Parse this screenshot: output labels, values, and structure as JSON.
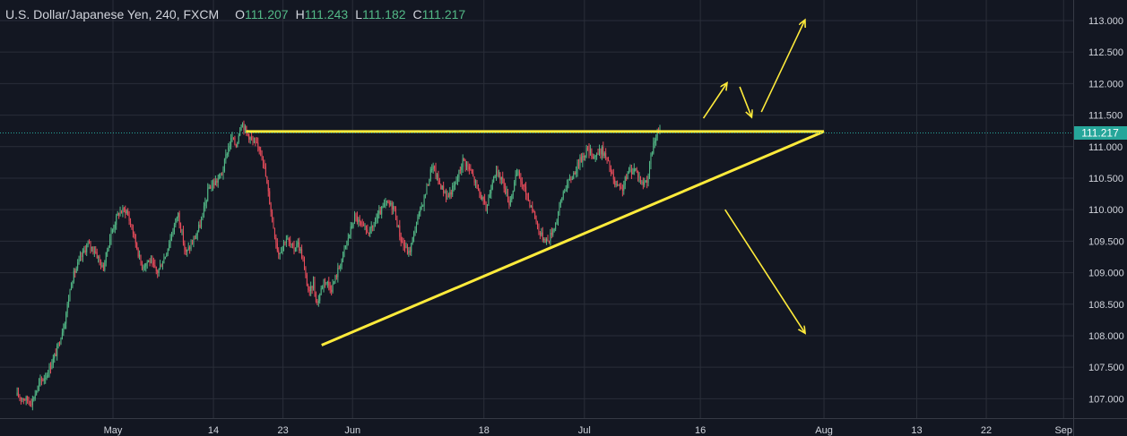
{
  "header": {
    "symbol": "U.S. Dollar/Japanese Yen, 240, FXCM",
    "open_label": "O",
    "open_value": "111.207",
    "high_label": "H",
    "high_value": "111.243",
    "low_label": "L",
    "low_value": "111.182",
    "close_label": "C",
    "close_value": "111.217"
  },
  "colors": {
    "background": "#131722",
    "grid": "#2a2e39",
    "axis_text": "#d1d4dc",
    "up": "#53b987",
    "down": "#eb4d5c",
    "drawing": "#ffeb3b",
    "price_tag": "#26a69a"
  },
  "chart_data": {
    "type": "candlestick",
    "interval": "240",
    "source": "FXCM",
    "y_ticks": [
      "107.000",
      "107.500",
      "108.000",
      "108.500",
      "109.000",
      "109.500",
      "110.000",
      "110.500",
      "111.000",
      "111.500",
      "112.000",
      "112.500",
      "113.000"
    ],
    "ylim": [
      106.85,
      113.2
    ],
    "x_ticks": [
      {
        "label": "May",
        "day": 0
      },
      {
        "label": "14",
        "day": 13
      },
      {
        "label": "23",
        "day": 22
      },
      {
        "label": "Jun",
        "day": 31
      },
      {
        "label": "18",
        "day": 48
      },
      {
        "label": "Jul",
        "day": 61
      },
      {
        "label": "16",
        "day": 76
      },
      {
        "label": "Aug",
        "day": 92
      },
      {
        "label": "13",
        "day": 104
      },
      {
        "label": "22",
        "day": 113
      },
      {
        "label": "Sep",
        "day": 123
      }
    ],
    "last_price": "111.217",
    "price_path": [
      [
        -12.4,
        107.05
      ],
      [
        -10.5,
        106.95
      ],
      [
        -9.5,
        107.25
      ],
      [
        -8.5,
        107.4
      ],
      [
        -7.3,
        107.75
      ],
      [
        -6.3,
        108.2
      ],
      [
        -5.3,
        108.9
      ],
      [
        -4.3,
        109.2
      ],
      [
        -3.3,
        109.45
      ],
      [
        -2.3,
        109.35
      ],
      [
        -1.3,
        109.05
      ],
      [
        -0.3,
        109.6
      ],
      [
        0.7,
        109.95
      ],
      [
        1.7,
        110.0
      ],
      [
        2.7,
        109.6
      ],
      [
        3.7,
        109.1
      ],
      [
        4.7,
        109.2
      ],
      [
        5.7,
        109.0
      ],
      [
        6.7,
        109.25
      ],
      [
        7.7,
        109.65
      ],
      [
        8.4,
        109.95
      ],
      [
        9.4,
        109.3
      ],
      [
        10.4,
        109.5
      ],
      [
        11.4,
        109.8
      ],
      [
        12.4,
        110.35
      ],
      [
        13.4,
        110.45
      ],
      [
        14.2,
        110.6
      ],
      [
        14.7,
        110.9
      ],
      [
        15.4,
        111.15
      ],
      [
        15.9,
        111.0
      ],
      [
        16.6,
        111.4
      ],
      [
        17.2,
        111.25
      ],
      [
        18.2,
        111.05
      ],
      [
        19.2,
        110.95
      ],
      [
        19.8,
        110.5
      ],
      [
        20.8,
        109.7
      ],
      [
        21.4,
        109.3
      ],
      [
        22.4,
        109.55
      ],
      [
        23.4,
        109.35
      ],
      [
        23.8,
        109.5
      ],
      [
        24.4,
        109.3
      ],
      [
        24.9,
        108.95
      ],
      [
        25.4,
        108.65
      ],
      [
        25.9,
        108.85
      ],
      [
        26.4,
        108.5
      ],
      [
        27.3,
        108.9
      ],
      [
        28.3,
        108.75
      ],
      [
        29.3,
        109.1
      ],
      [
        30.3,
        109.5
      ],
      [
        31.3,
        109.9
      ],
      [
        32.3,
        109.7
      ],
      [
        33.3,
        109.65
      ],
      [
        34.3,
        109.9
      ],
      [
        35.3,
        110.1
      ],
      [
        36.3,
        110.05
      ],
      [
        37.3,
        109.5
      ],
      [
        38.3,
        109.3
      ],
      [
        39.3,
        109.8
      ],
      [
        40.3,
        110.2
      ],
      [
        41.3,
        110.7
      ],
      [
        42.3,
        110.4
      ],
      [
        43.3,
        110.2
      ],
      [
        44.3,
        110.4
      ],
      [
        45.3,
        110.8
      ],
      [
        46.3,
        110.6
      ],
      [
        47.3,
        110.3
      ],
      [
        48.3,
        110.0
      ],
      [
        49.3,
        110.6
      ],
      [
        50.3,
        110.5
      ],
      [
        51.3,
        110.1
      ],
      [
        52.3,
        110.6
      ],
      [
        53.3,
        110.3
      ],
      [
        54.3,
        110.0
      ],
      [
        55.3,
        109.6
      ],
      [
        56.3,
        109.5
      ],
      [
        57.3,
        109.8
      ],
      [
        58.3,
        110.3
      ],
      [
        59.3,
        110.5
      ],
      [
        60.3,
        110.75
      ],
      [
        61.3,
        110.95
      ],
      [
        62.3,
        110.85
      ],
      [
        63.3,
        110.95
      ],
      [
        64.2,
        110.7
      ],
      [
        64.9,
        110.4
      ],
      [
        65.8,
        110.3
      ],
      [
        66.7,
        110.6
      ],
      [
        67.6,
        110.65
      ],
      [
        68.5,
        110.4
      ],
      [
        69.2,
        110.5
      ],
      [
        69.7,
        110.9
      ],
      [
        70.2,
        111.15
      ],
      [
        70.8,
        111.24
      ]
    ]
  },
  "drawings": {
    "resistance_line": {
      "from": [
        17.2,
        111.24
      ],
      "to": [
        92.0,
        111.24
      ]
    },
    "ascending_trendline": {
      "from": [
        27.0,
        107.85
      ],
      "to": [
        92.0,
        111.24
      ]
    },
    "arrows": [
      {
        "from": [
          76.4,
          111.45
        ],
        "to": [
          79.4,
          112.0
        ]
      },
      {
        "from": [
          81.1,
          111.95
        ],
        "to": [
          82.6,
          111.48
        ]
      },
      {
        "from": [
          83.9,
          111.55
        ],
        "to": [
          89.5,
          113.0
        ]
      },
      {
        "from": [
          79.2,
          110.0
        ],
        "to": [
          89.5,
          108.05
        ]
      }
    ]
  }
}
